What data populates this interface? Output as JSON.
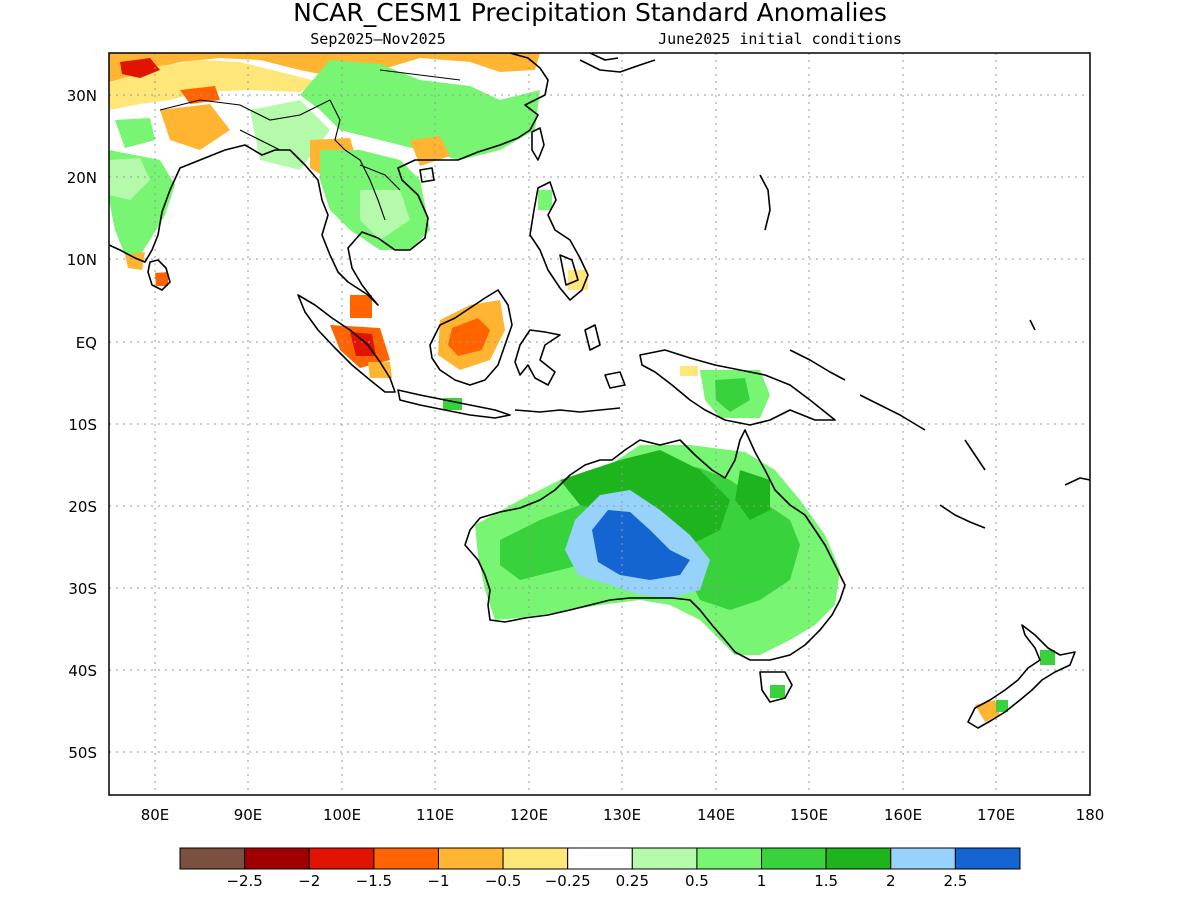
{
  "title": "NCAR_CESM1 Precipitation Standard Anomalies",
  "subtitle_left": "Sep2025—Nov2025",
  "subtitle_right": "June2025 initial conditions",
  "lon_labels": [
    "80E",
    "90E",
    "100E",
    "110E",
    "120E",
    "130E",
    "140E",
    "150E",
    "160E",
    "170E",
    "180"
  ],
  "lon_values": [
    80,
    90,
    100,
    110,
    120,
    130,
    140,
    150,
    160,
    170,
    180
  ],
  "lat_labels": [
    "30N",
    "20N",
    "10N",
    "EQ",
    "10S",
    "20S",
    "30S",
    "40S",
    "50S"
  ],
  "lat_values": [
    30,
    20,
    10,
    0,
    -10,
    -20,
    -30,
    -40,
    -50
  ],
  "map_extent": {
    "lon_min": 75,
    "lon_max": 180,
    "lat_min": -55,
    "lat_max": 35
  },
  "colorbar": {
    "colors": [
      "#7a5040",
      "#a00000",
      "#e01400",
      "#ff6400",
      "#ffb432",
      "#ffe678",
      "#ffffff",
      "#b4faaa",
      "#78f573",
      "#37d23c",
      "#1eb41e",
      "#96d2fa",
      "#1464d2"
    ],
    "labels": [
      "−2.5",
      "−2",
      "−1.5",
      "−1",
      "−0.5",
      "−0.25",
      "0.25",
      "0.5",
      "1",
      "1.5",
      "2",
      "2.5"
    ]
  },
  "colors": {
    "brown": "#7a5040",
    "dark_red": "#a00000",
    "red": "#e01400",
    "orange": "#ff6400",
    "light_orange": "#ffb432",
    "yellow": "#ffe678",
    "white": "#ffffff",
    "pale_green": "#b4faaa",
    "light_green": "#78f573",
    "green": "#37d23c",
    "dark_green": "#1eb41e",
    "light_blue": "#96d2fa",
    "blue": "#1464d2"
  }
}
